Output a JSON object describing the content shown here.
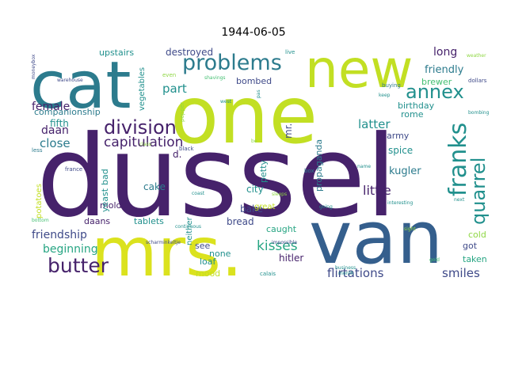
{
  "title": "1944-06-05",
  "palette": {
    "dark_purple": "#46226b",
    "indigo": "#3f4a89",
    "blue": "#355f8d",
    "teal_blue": "#2c7b8d",
    "teal": "#21908d",
    "green_teal": "#27a583",
    "green": "#43bf71",
    "light_green": "#8fd744",
    "yellow_green": "#c2df23",
    "yellow": "#dbe21e"
  },
  "words": [
    {
      "text": "dussel",
      "color": "dark_purple"
    },
    {
      "text": "one",
      "color": "yellow_green"
    },
    {
      "text": "cat",
      "color": "teal_blue"
    },
    {
      "text": "new",
      "color": "yellow_green"
    },
    {
      "text": "mrs.",
      "color": "yellow"
    },
    {
      "text": "van",
      "color": "blue"
    },
    {
      "text": "problems",
      "color": "teal_blue"
    },
    {
      "text": "annex",
      "color": "teal"
    },
    {
      "text": "franks",
      "color": "teal"
    },
    {
      "text": "quarrel",
      "color": "teal"
    },
    {
      "text": "division",
      "color": "dark_purple"
    },
    {
      "text": "capitulation",
      "color": "dark_purple"
    },
    {
      "text": "butter",
      "color": "dark_purple"
    },
    {
      "text": "flirtations",
      "color": "indigo"
    },
    {
      "text": "smiles",
      "color": "indigo"
    },
    {
      "text": "kisses",
      "color": "green_teal"
    },
    {
      "text": "friendship",
      "color": "indigo"
    },
    {
      "text": "beginning",
      "color": "green_teal"
    },
    {
      "text": "close",
      "color": "teal_blue"
    },
    {
      "text": "female",
      "color": "dark_purple"
    },
    {
      "text": "daan",
      "color": "dark_purple"
    },
    {
      "text": "part",
      "color": "teal"
    },
    {
      "text": "fifth",
      "color": "teal"
    },
    {
      "text": "long",
      "color": "dark_purple"
    },
    {
      "text": "friendly",
      "color": "teal_blue"
    },
    {
      "text": "latter",
      "color": "teal"
    },
    {
      "text": "little",
      "color": "dark_purple"
    },
    {
      "text": "companionship",
      "color": "teal_blue"
    },
    {
      "text": "upstairs",
      "color": "teal"
    },
    {
      "text": "destroyed",
      "color": "indigo"
    },
    {
      "text": "bombed",
      "color": "indigo"
    },
    {
      "text": "vegetables",
      "color": "teal"
    },
    {
      "text": "brewer",
      "color": "green"
    },
    {
      "text": "birthday",
      "color": "teal"
    },
    {
      "text": "rome",
      "color": "teal"
    },
    {
      "text": "army",
      "color": "indigo"
    },
    {
      "text": "spice",
      "color": "teal"
    },
    {
      "text": "kugler",
      "color": "teal_blue"
    },
    {
      "text": "propaganda",
      "color": "teal_blue"
    },
    {
      "text": "mr.",
      "color": "indigo"
    },
    {
      "text": "d.",
      "color": "dark_purple"
    },
    {
      "text": "cake",
      "color": "teal_blue"
    },
    {
      "text": "city",
      "color": "teal"
    },
    {
      "text": "petty",
      "color": "teal"
    },
    {
      "text": "bake",
      "color": "indigo"
    },
    {
      "text": "bread",
      "color": "indigo"
    },
    {
      "text": "caught",
      "color": "green_teal"
    },
    {
      "text": "hitler",
      "color": "dark_purple"
    },
    {
      "text": "got",
      "color": "indigo"
    },
    {
      "text": "cold",
      "color": "light_green"
    },
    {
      "text": "taken",
      "color": "green_teal"
    },
    {
      "text": "moldy",
      "color": "dark_purple"
    },
    {
      "text": "daans",
      "color": "dark_purple"
    },
    {
      "text": "yeast",
      "color": "teal"
    },
    {
      "text": "bad",
      "color": "teal"
    },
    {
      "text": "neither",
      "color": "teal"
    },
    {
      "text": "tablets",
      "color": "teal"
    },
    {
      "text": "see",
      "color": "indigo"
    },
    {
      "text": "none",
      "color": "teal"
    },
    {
      "text": "loaf",
      "color": "teal"
    },
    {
      "text": "mood",
      "color": "yellow_green"
    },
    {
      "text": "great",
      "color": "yellow_green"
    },
    {
      "text": "potatoes",
      "color": "yellow_green"
    },
    {
      "text": "live",
      "color": "teal"
    },
    {
      "text": "even",
      "color": "light_green"
    },
    {
      "text": "pepper",
      "color": "light_green"
    },
    {
      "text": "shavings",
      "color": "green"
    },
    {
      "text": "west",
      "color": "teal"
    },
    {
      "text": "pas",
      "color": "teal"
    },
    {
      "text": "buying",
      "color": "teal_blue"
    },
    {
      "text": "keep",
      "color": "teal"
    },
    {
      "text": "dollars",
      "color": "indigo"
    },
    {
      "text": "bombing",
      "color": "teal"
    },
    {
      "text": "weather",
      "color": "light_green"
    },
    {
      "text": "moneybox",
      "color": "indigo"
    },
    {
      "text": "warehouse",
      "color": "indigo"
    },
    {
      "text": "less",
      "color": "teal_blue"
    },
    {
      "text": "class",
      "color": "light_green"
    },
    {
      "text": "black",
      "color": "indigo"
    },
    {
      "text": "france",
      "color": "indigo"
    },
    {
      "text": "coast",
      "color": "teal"
    },
    {
      "text": "sleeps",
      "color": "light_green"
    },
    {
      "text": "box",
      "color": "teal_blue"
    },
    {
      "text": "name",
      "color": "teal"
    },
    {
      "text": "interesting",
      "color": "teal"
    },
    {
      "text": "next",
      "color": "teal"
    },
    {
      "text": "going",
      "color": "teal"
    },
    {
      "text": "bottom",
      "color": "green"
    },
    {
      "text": "continuous",
      "color": "teal"
    },
    {
      "text": "scharminkeltje",
      "color": "indigo"
    },
    {
      "text": "impossible",
      "color": "indigo"
    },
    {
      "text": "sight",
      "color": "light_green"
    },
    {
      "text": "calais",
      "color": "teal"
    },
    {
      "text": "business",
      "color": "teal"
    },
    {
      "text": "month",
      "color": "teal"
    },
    {
      "text": "gold",
      "color": "green"
    },
    {
      "text": "be",
      "color": "light_green"
    }
  ]
}
